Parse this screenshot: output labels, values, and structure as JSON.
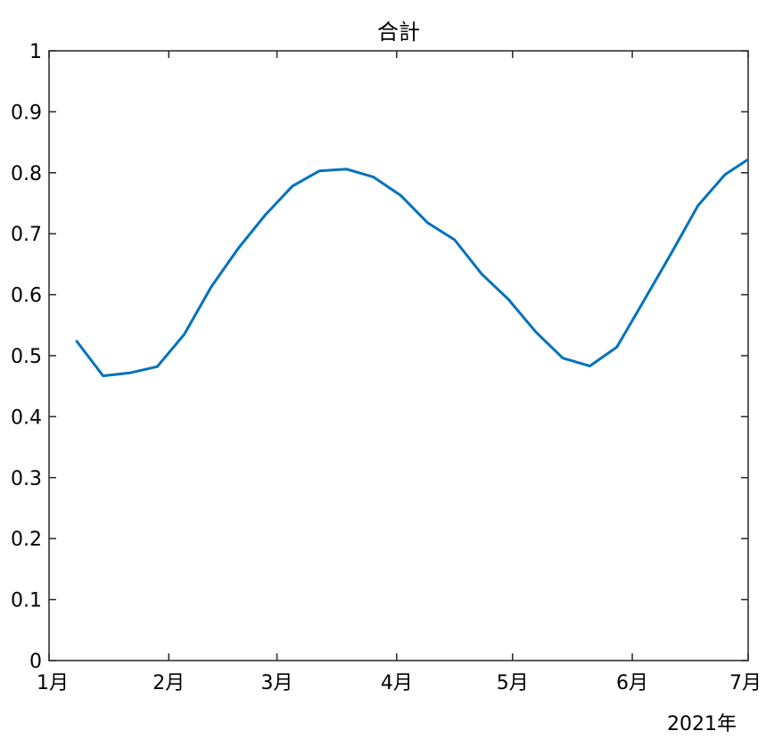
{
  "chart_data": {
    "type": "line",
    "title": "合計",
    "xlabel": "",
    "ylabel": "",
    "x_unit_label": "2021年",
    "xlim": [
      "2021-01-01",
      "2021-07-01"
    ],
    "ylim": [
      0,
      1
    ],
    "grid": false,
    "x_tick_labels": [
      "1月",
      "2月",
      "3月",
      "4月",
      "5月",
      "6月",
      "7月"
    ],
    "x_ticks": [
      "2021-01-01",
      "2021-02-01",
      "2021-03-01",
      "2021-04-01",
      "2021-05-01",
      "2021-06-01",
      "2021-07-01"
    ],
    "y_ticks": [
      0,
      0.1,
      0.2,
      0.3,
      0.4,
      0.5,
      0.6,
      0.7,
      0.8,
      0.9,
      1
    ],
    "y_tick_labels": [
      "0",
      "0.1",
      "0.2",
      "0.3",
      "0.4",
      "0.5",
      "0.6",
      "0.7",
      "0.8",
      "0.9",
      "1"
    ],
    "series": [
      {
        "color": "#0072bd",
        "x": [
          "2021-01-08",
          "2021-01-15",
          "2021-01-22",
          "2021-01-29",
          "2021-02-05",
          "2021-02-12",
          "2021-02-19",
          "2021-02-26",
          "2021-03-05",
          "2021-03-12",
          "2021-03-19",
          "2021-03-26",
          "2021-04-02",
          "2021-04-09",
          "2021-04-16",
          "2021-04-23",
          "2021-04-30",
          "2021-05-07",
          "2021-05-14",
          "2021-05-21",
          "2021-05-28",
          "2021-06-04",
          "2021-06-11",
          "2021-06-18",
          "2021-06-25",
          "2021-07-01"
        ],
        "values": [
          0.525,
          0.467,
          0.472,
          0.482,
          0.535,
          0.613,
          0.676,
          0.731,
          0.778,
          0.803,
          0.806,
          0.793,
          0.763,
          0.718,
          0.69,
          0.634,
          0.592,
          0.539,
          0.496,
          0.483,
          0.514,
          0.59,
          0.667,
          0.746,
          0.797,
          0.822
        ]
      }
    ]
  }
}
